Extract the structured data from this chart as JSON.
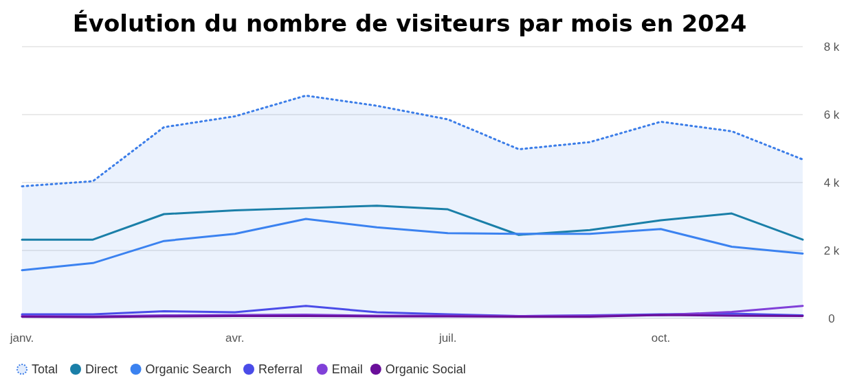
{
  "chart_data": {
    "type": "line",
    "title": "Évolution du nombre de visiteurs par mois en 2024",
    "categories": [
      "janv.",
      null,
      null,
      "avr.",
      null,
      null,
      "juil.",
      null,
      null,
      "oct.",
      null,
      null
    ],
    "series": [
      {
        "name": "Total",
        "type": "area",
        "line_style": "dotted",
        "color": "#3b7de8",
        "values": [
          3890,
          4040,
          5630,
          5950,
          6560,
          6260,
          5860,
          4980,
          5190,
          5790,
          5510,
          4680
        ]
      },
      {
        "name": "Direct",
        "color": "#1a7fa8",
        "values": [
          2320,
          2320,
          3070,
          3180,
          3250,
          3320,
          3210,
          2460,
          2600,
          2890,
          3090,
          2320
        ]
      },
      {
        "name": "Organic Search",
        "color": "#3b82f0",
        "values": [
          1420,
          1630,
          2280,
          2490,
          2930,
          2680,
          2510,
          2490,
          2490,
          2630,
          2110,
          1910
        ]
      },
      {
        "name": "Referral",
        "color": "#4a4ce8",
        "values": [
          120,
          120,
          210,
          180,
          370,
          180,
          120,
          70,
          90,
          120,
          140,
          90
        ]
      },
      {
        "name": "Email",
        "color": "#8040d8",
        "values": [
          70,
          60,
          90,
          100,
          110,
          80,
          80,
          70,
          80,
          100,
          190,
          370
        ]
      },
      {
        "name": "Organic Social",
        "color": "#6a0f9a",
        "values": [
          50,
          40,
          60,
          70,
          70,
          60,
          60,
          50,
          50,
          100,
          80,
          70
        ]
      }
    ],
    "ylim": [
      0,
      8000
    ],
    "yticks": [
      0,
      {
        "value": 2000,
        "label": "2 k"
      },
      {
        "value": 4000,
        "label": "4 k"
      },
      {
        "value": 6000,
        "label": "6 k"
      },
      {
        "value": 8000,
        "label": "8 k"
      }
    ],
    "grid": "y",
    "legend": "bottom",
    "marker": "none"
  }
}
